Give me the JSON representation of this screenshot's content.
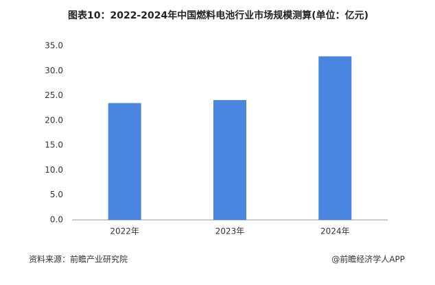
{
  "chart_data": {
    "type": "bar",
    "title": "图表10：2022-2024年中国燃料电池行业市场规模测算(单位：亿元)",
    "categories": [
      "2022年",
      "2023年",
      "2024年"
    ],
    "values": [
      23.5,
      24.1,
      32.9
    ],
    "color": "#4a86e0",
    "ylim": [
      0,
      35
    ],
    "yticks": [
      {
        "value": 0,
        "label": "0.0"
      },
      {
        "value": 5,
        "label": "5.0"
      },
      {
        "value": 10,
        "label": "10.0"
      },
      {
        "value": 15,
        "label": "15.0"
      },
      {
        "value": 20,
        "label": "20.0"
      },
      {
        "value": 25,
        "label": "25.0"
      },
      {
        "value": 30,
        "label": "30.0"
      },
      {
        "value": 35,
        "label": "35.0"
      }
    ],
    "grid": false,
    "source": "资料来源：前瞻产业研究院",
    "credit": "@前瞻经济学人APP"
  }
}
